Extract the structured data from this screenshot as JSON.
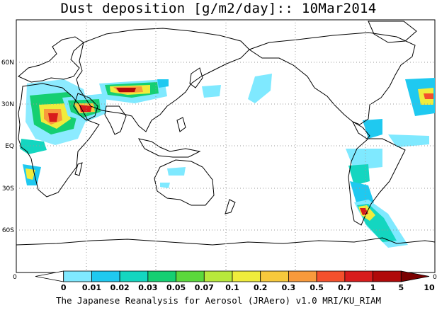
{
  "title": "Dust deposition [g/m2/day]:: 10Mar2014",
  "footer": "The Japanese Reanalysis for Aerosol (JRAero) v1.0 MRI/KU_RIAM",
  "map": {
    "projection": "equirectangular, Pacific-centred",
    "lat_labels": [
      "60N",
      "30N",
      "EQ",
      "30S",
      "60S"
    ],
    "edge_labels": {
      "left": "0",
      "right": "0"
    },
    "gridlines": "dotted"
  },
  "colorbar": {
    "labels": [
      "0",
      "0.01",
      "0.02",
      "0.03",
      "0.05",
      "0.07",
      "0.1",
      "0.2",
      "0.3",
      "0.5",
      "0.7",
      "1",
      "5",
      "10"
    ],
    "colors": [
      "#ffffff",
      "#7fe9ff",
      "#1fc9f0",
      "#14d6c0",
      "#15cf72",
      "#5bd83c",
      "#b8e83c",
      "#f0ec3c",
      "#f7c93c",
      "#f89a3c",
      "#f4502c",
      "#d81c1c",
      "#b00a0a",
      "#7a0000"
    ]
  }
}
